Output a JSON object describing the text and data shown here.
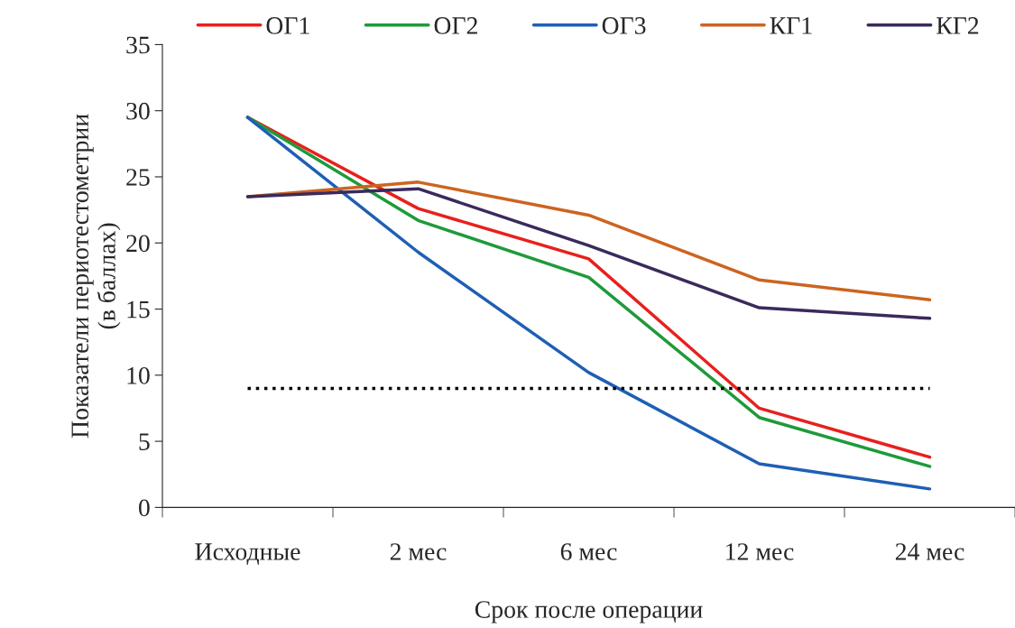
{
  "chart_data": {
    "type": "line",
    "xlabel": "Срок после операции",
    "ylabel": "Показатели периотестометрии\n(в баллах)",
    "categories": [
      "Исходные",
      "2 мес",
      "6 мес",
      "12 мес",
      "24 мес"
    ],
    "series": [
      {
        "name": "ОГ1",
        "color": "#e8201c",
        "values": [
          29.5,
          22.6,
          18.8,
          7.5,
          3.8
        ]
      },
      {
        "name": "ОГ2",
        "color": "#1f9a3a",
        "values": [
          29.5,
          21.7,
          17.4,
          6.8,
          3.1
        ]
      },
      {
        "name": "ОГ3",
        "color": "#1f5fb4",
        "values": [
          29.5,
          19.3,
          10.2,
          3.3,
          1.4
        ]
      },
      {
        "name": "КГ1",
        "color": "#cc6420",
        "values": [
          23.5,
          24.6,
          22.1,
          17.2,
          15.7
        ]
      },
      {
        "name": "КГ2",
        "color": "#3a2a5c",
        "values": [
          23.5,
          24.1,
          19.8,
          15.1,
          14.3
        ]
      }
    ],
    "ref_lines": [
      {
        "axis": "y",
        "value": 9,
        "color": "#000000",
        "line_style": "dotted"
      }
    ],
    "ylim": [
      0,
      35
    ],
    "yticks": [
      0,
      5,
      10,
      15,
      20,
      25,
      30,
      35
    ],
    "grid": false,
    "legend": "top",
    "marker": "none",
    "line_style": "solid"
  }
}
